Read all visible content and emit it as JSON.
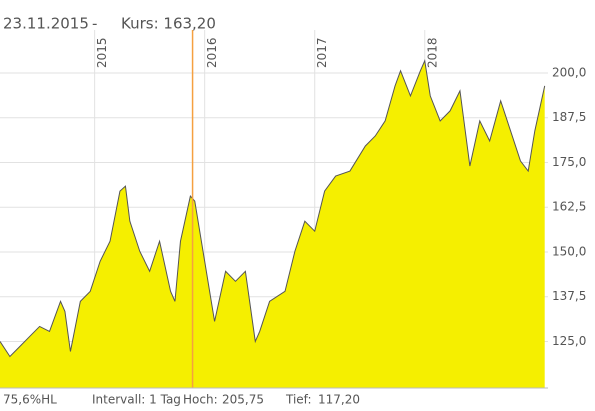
{
  "chart_data": {
    "type": "area",
    "header": [
      "23.11.2015",
      "-",
      "Kurs: 163,20"
    ],
    "footer": [
      "75,6%HL",
      "Intervall: 1 Tag",
      "Hoch:",
      "205,75",
      "Tief:",
      "117,20"
    ],
    "x": [
      2014.14,
      2014.23,
      2014.32,
      2014.41,
      2014.5,
      2014.59,
      2014.69,
      2014.73,
      2014.78,
      2014.87,
      2014.96,
      2015.05,
      2015.14,
      2015.23,
      2015.28,
      2015.32,
      2015.41,
      2015.5,
      2015.59,
      2015.69,
      2015.73,
      2015.78,
      2015.87,
      2015.91,
      2016.0,
      2016.09,
      2016.19,
      2016.28,
      2016.37,
      2016.46,
      2016.5,
      2016.59,
      2016.73,
      2016.82,
      2016.91,
      2017.0,
      2017.09,
      2017.19,
      2017.32,
      2017.46,
      2017.55,
      2017.64,
      2017.73,
      2017.78,
      2017.87,
      2017.96,
      2018.0,
      2018.05,
      2018.14,
      2018.23,
      2018.32,
      2018.41,
      2018.5,
      2018.59,
      2018.69,
      2018.78,
      2018.87,
      2018.94,
      2019.0,
      2019.09
    ],
    "series": [
      {
        "color": "#f5ef00",
        "line_color": "#555555",
        "values": [
          125,
          120.8,
          123.6,
          126.4,
          129.2,
          127.8,
          136.2,
          133.4,
          122.2,
          136.2,
          139,
          147.4,
          153,
          167,
          168.4,
          158.6,
          150.2,
          144.6,
          153,
          139,
          136.2,
          153,
          165.6,
          164.2,
          147.4,
          130.6,
          144.6,
          141.8,
          144.6,
          125,
          127.8,
          136.2,
          139,
          150.2,
          158.6,
          155.8,
          167,
          171.2,
          172.6,
          179.6,
          182.4,
          186.6,
          196.4,
          200.6,
          193.6,
          200.6,
          203.4,
          193.6,
          186.6,
          189.4,
          195,
          174,
          186.6,
          181,
          192.2,
          183.8,
          175.4,
          172.6,
          183.8,
          196.4
        ]
      }
    ],
    "xlim": [
      2014.14,
      2019.12
    ],
    "xticks": [
      2015,
      2016,
      2017,
      2018
    ],
    "ylim": [
      112,
      212
    ],
    "yticks": [
      {
        "value": 125,
        "label": "125,0"
      },
      {
        "value": 137.5,
        "label": "137,5"
      },
      {
        "value": 150,
        "label": "150,0"
      },
      {
        "value": 162.5,
        "label": "162,5"
      },
      {
        "value": 175,
        "label": "175,0"
      },
      {
        "value": 187.5,
        "label": "187,5"
      },
      {
        "value": 200,
        "label": "200,0"
      }
    ],
    "marker_x": 2015.89,
    "marker_color": "#f5a040",
    "grid": true
  }
}
